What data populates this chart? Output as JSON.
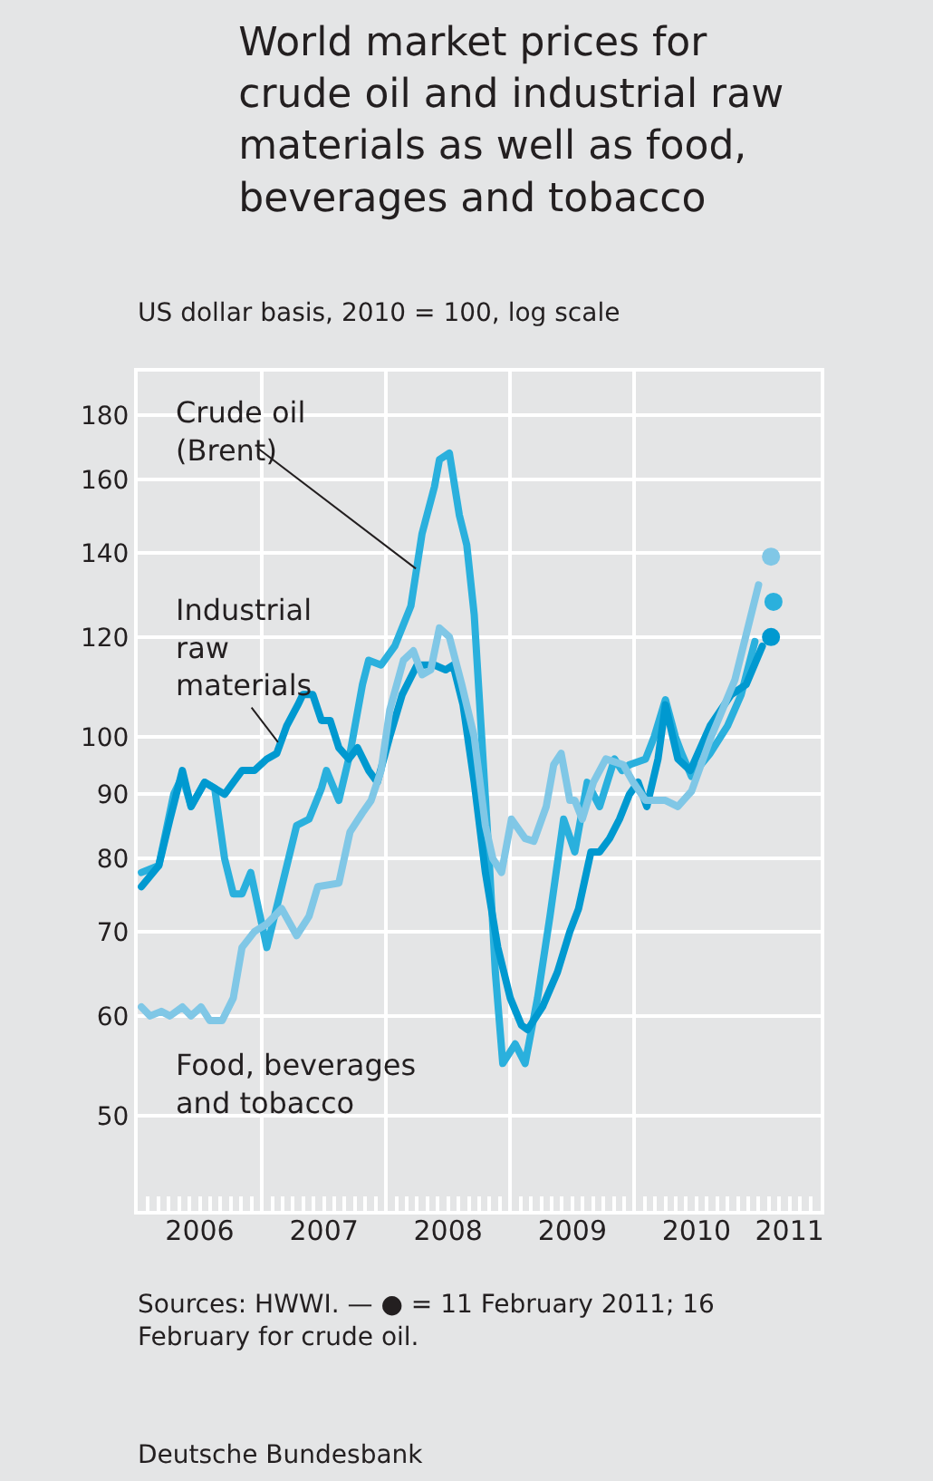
{
  "chart_data": {
    "type": "line",
    "title": "World market prices for crude oil and industrial raw materials as well as food, beverages and tobacco",
    "subtitle": "US dollar basis, 2010 = 100, log scale",
    "log": "y",
    "grid": true,
    "legend": false,
    "line_style": "solid",
    "marker": "none",
    "xlim": [
      2006,
      2011.5
    ],
    "xticks": [
      {
        "value": 2007,
        "label": null
      },
      {
        "value": 2008,
        "label": null
      },
      {
        "value": 2009,
        "label": null
      },
      {
        "value": 2010,
        "label": null
      },
      {
        "value": 2006.5,
        "label": "2006"
      },
      {
        "value": 2007.5,
        "label": "2007"
      },
      {
        "value": 2008.5,
        "label": "2008"
      },
      {
        "value": 2009.5,
        "label": "2009"
      },
      {
        "value": 2010.5,
        "label": "2010"
      },
      {
        "value": 2011.25,
        "label": "2011"
      }
    ],
    "ylim": [
      42,
      195
    ],
    "yticks": [
      50,
      60,
      70,
      80,
      90,
      100,
      120,
      140,
      160,
      180
    ],
    "series": [
      {
        "name": "Crude oil (Brent)",
        "color": "#2ab0dd",
        "x": [
          2006.03,
          2006.17,
          2006.29,
          2006.36,
          2006.43,
          2006.54,
          2006.62,
          2006.7,
          2006.77,
          2006.84,
          2006.91,
          2007.04,
          2007.16,
          2007.28,
          2007.38,
          2007.48,
          2007.52,
          2007.62,
          2007.71,
          2007.81,
          2007.86,
          2007.96,
          2008.07,
          2008.2,
          2008.29,
          2008.39,
          2008.43,
          2008.51,
          2008.59,
          2008.65,
          2008.71,
          2008.77,
          2008.83,
          2008.88,
          2008.94,
          2009.04,
          2009.12,
          2009.22,
          2009.32,
          2009.43,
          2009.52,
          2009.62,
          2009.72,
          2009.84,
          2009.9,
          2009.96,
          2010.09,
          2010.16,
          2010.25,
          2010.33,
          2010.38,
          2010.46,
          2010.61,
          2010.75,
          2010.86,
          2010.97
        ],
        "values": [
          78,
          79,
          90,
          93,
          88,
          92,
          91,
          80,
          75,
          75,
          78,
          68,
          76,
          85,
          86,
          91,
          94,
          89,
          97,
          110,
          115,
          114,
          118,
          127,
          145,
          158,
          166,
          168,
          150,
          142,
          125,
          100,
          80,
          65,
          55,
          57,
          55,
          62,
          72,
          86,
          81,
          92,
          88,
          96,
          94,
          95,
          96,
          100,
          107,
          100,
          97,
          93,
          97,
          102,
          108,
          119
        ]
      },
      {
        "name": "Industrial raw materials",
        "color": "#0099d0",
        "x": [
          2006.03,
          2006.17,
          2006.26,
          2006.36,
          2006.43,
          2006.54,
          2006.62,
          2006.7,
          2006.84,
          2006.94,
          2007.04,
          2007.12,
          2007.2,
          2007.29,
          2007.33,
          2007.41,
          2007.48,
          2007.55,
          2007.62,
          2007.7,
          2007.77,
          2007.86,
          2007.93,
          2008.03,
          2008.13,
          2008.25,
          2008.39,
          2008.48,
          2008.54,
          2008.62,
          2008.71,
          2008.8,
          2008.9,
          2009.0,
          2009.09,
          2009.14,
          2009.26,
          2009.38,
          2009.48,
          2009.55,
          2009.65,
          2009.72,
          2009.8,
          2009.88,
          2009.96,
          2010.03,
          2010.1,
          2010.19,
          2010.25,
          2010.35,
          2010.45,
          2010.61,
          2010.78,
          2010.9,
          2011.03
        ],
        "values": [
          76,
          79,
          86,
          94,
          88,
          92,
          91,
          90,
          94,
          94,
          96,
          97,
          102,
          106,
          108,
          108,
          103,
          103,
          98,
          96,
          98,
          94,
          92,
          100,
          108,
          114,
          114,
          113,
          114,
          106,
          92,
          78,
          68,
          62,
          59,
          58.5,
          61,
          65,
          70,
          73,
          81,
          81,
          83,
          86,
          90,
          92,
          88,
          96,
          106,
          96,
          94,
          102,
          108,
          110,
          118
        ]
      },
      {
        "name": "Food, beverages and tobacco",
        "color": "#80c7e6",
        "x": [
          2006.03,
          2006.1,
          2006.19,
          2006.26,
          2006.36,
          2006.43,
          2006.51,
          2006.58,
          2006.68,
          2006.77,
          2006.84,
          2006.94,
          2007.04,
          2007.16,
          2007.28,
          2007.38,
          2007.45,
          2007.62,
          2007.71,
          2007.81,
          2007.88,
          2007.96,
          2008.03,
          2008.14,
          2008.22,
          2008.29,
          2008.36,
          2008.43,
          2008.51,
          2008.61,
          2008.71,
          2008.8,
          2008.86,
          2008.93,
          2009.01,
          2009.12,
          2009.19,
          2009.29,
          2009.35,
          2009.41,
          2009.48,
          2009.52,
          2009.58,
          2009.67,
          2009.77,
          2009.91,
          2009.99,
          2010.09,
          2010.25,
          2010.35,
          2010.46,
          2010.61,
          2010.81,
          2011.0
        ],
        "values": [
          61,
          60,
          60.5,
          60,
          61,
          60,
          61,
          59.5,
          59.5,
          62,
          68,
          70,
          71,
          73,
          69.5,
          72,
          76,
          76.5,
          84,
          87,
          89,
          94,
          105,
          115,
          117,
          112,
          113,
          122,
          120,
          110,
          100,
          85,
          80,
          78,
          86,
          83,
          82.6,
          88,
          95,
          97,
          89,
          89,
          86,
          92,
          96,
          95,
          92,
          89,
          89,
          88,
          90.5,
          99.5,
          111,
          132
        ]
      },
      {
        "type": "scatter",
        "marker": "circle",
        "x": [
          2011.12,
          2011.1,
          2011.1
        ],
        "values": [
          128,
          120,
          139
        ],
        "colors": [
          "#2ab0dd",
          "#0099d0",
          "#80c7e6"
        ]
      }
    ],
    "annotations": [
      "Sources: HWWI. — ● = 11 February 2011; 16 February for crude oil.",
      "Deutsche Bundesbank"
    ]
  }
}
